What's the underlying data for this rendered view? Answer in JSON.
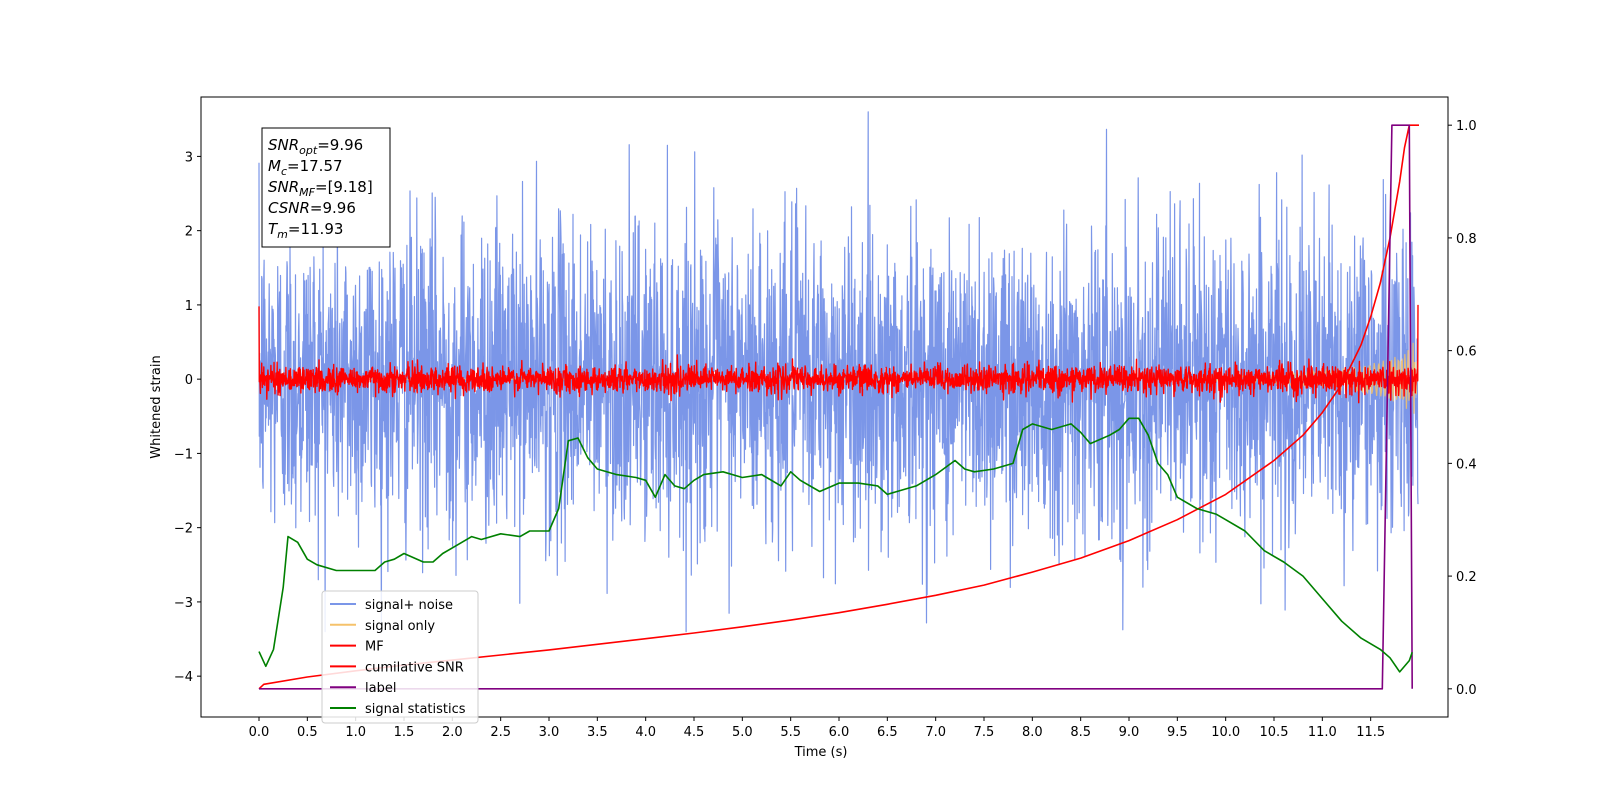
{
  "chart_data": {
    "type": "line",
    "title": "",
    "xlabel": "Time (s)",
    "ylabel": "Whitened strain",
    "y2label": "",
    "xlim": [
      -0.6,
      12.3
    ],
    "ylim": [
      -4.55,
      3.8
    ],
    "y2lim": [
      -0.05,
      1.05
    ],
    "x_ticks": [
      0.0,
      0.5,
      1.0,
      1.5,
      2.0,
      2.5,
      3.0,
      3.5,
      4.0,
      4.5,
      5.0,
      5.5,
      6.0,
      6.5,
      7.0,
      7.5,
      8.0,
      8.5,
      9.0,
      9.5,
      10.0,
      10.5,
      11.0,
      11.5
    ],
    "x_tick_labels": [
      "0.0",
      "0.5",
      "1.0",
      "1.5",
      "2.0",
      "2.5",
      "3.0",
      "3.5",
      "4.0",
      "4.5",
      "5.0",
      "5.5",
      "6.0",
      "6.5",
      "7.0",
      "7.5",
      "8.0",
      "8.5",
      "9.0",
      "9.5",
      "10.0",
      "10.5",
      "11.0",
      "11.5"
    ],
    "y_ticks": [
      -4,
      -3,
      -2,
      -1,
      0,
      1,
      2,
      3
    ],
    "y_tick_labels": [
      "−4",
      "−3",
      "−2",
      "−1",
      "0",
      "1",
      "2",
      "3"
    ],
    "y2_ticks": [
      0.0,
      0.2,
      0.4,
      0.6,
      0.8,
      1.0
    ],
    "y2_tick_labels": [
      "0.0",
      "0.2",
      "0.4",
      "0.6",
      "0.8",
      "1.0"
    ],
    "grid": false,
    "legend_position": "lower-left",
    "annotation": {
      "lines": [
        {
          "name": "SNR",
          "sub": "opt",
          "value": "=9.96"
        },
        {
          "name": "M",
          "sub": "c",
          "value": "=17.57"
        },
        {
          "name": "SNR",
          "sub": "MF",
          "value": "=[9.18]"
        },
        {
          "name": "CSNR",
          "sub": "",
          "value": "=9.96"
        },
        {
          "name": "T",
          "sub": "m",
          "value": "=11.93"
        }
      ]
    },
    "series": [
      {
        "name": "signal+ noise",
        "axis": "left",
        "color": "#7b96e8",
        "kind": "noise",
        "x_range": [
          0.0,
          11.99
        ],
        "sigma": 1.05,
        "peak_max": 3.6,
        "peak_min": -3.4
      },
      {
        "name": "signal only",
        "axis": "left",
        "color": "#f5c26b",
        "kind": "chirp",
        "x_range": [
          0.0,
          11.99
        ],
        "amplitude_start": 0.0,
        "amplitude_end": 1.0
      },
      {
        "name": "MF",
        "axis": "left",
        "color": "#ff0000",
        "kind": "noise",
        "x_range": [
          0.0,
          11.99
        ],
        "sigma": 0.09,
        "start_value": 0.98,
        "end_value": 1.0
      },
      {
        "name": "cumilative SNR",
        "axis": "right",
        "color": "#ff0000",
        "kind": "line",
        "x": [
          0.0,
          0.05,
          0.5,
          1.0,
          1.5,
          2.0,
          2.5,
          3.0,
          3.5,
          4.0,
          4.5,
          5.0,
          5.5,
          6.0,
          6.5,
          7.0,
          7.5,
          8.0,
          8.5,
          9.0,
          9.5,
          10.0,
          10.5,
          10.8,
          11.0,
          11.2,
          11.4,
          11.5,
          11.6,
          11.7,
          11.8,
          11.85,
          11.9,
          11.93,
          12.0
        ],
        "y": [
          0.0,
          0.008,
          0.021,
          0.032,
          0.042,
          0.051,
          0.06,
          0.069,
          0.079,
          0.089,
          0.099,
          0.11,
          0.122,
          0.135,
          0.15,
          0.166,
          0.184,
          0.207,
          0.232,
          0.263,
          0.3,
          0.345,
          0.405,
          0.45,
          0.49,
          0.54,
          0.61,
          0.66,
          0.72,
          0.8,
          0.9,
          0.96,
          1.0,
          1.0,
          1.0
        ]
      },
      {
        "name": "label",
        "axis": "right",
        "color": "#800080",
        "kind": "line",
        "x": [
          0.0,
          11.62,
          11.72,
          11.72,
          11.9,
          11.9,
          11.93
        ],
        "y": [
          0.0,
          0.0,
          1.0,
          1.0,
          1.0,
          1.0,
          0.0
        ]
      },
      {
        "name": "signal statistics",
        "axis": "right",
        "color": "#008000",
        "kind": "line",
        "x": [
          0.0,
          0.07,
          0.15,
          0.25,
          0.3,
          0.4,
          0.5,
          0.6,
          0.8,
          1.0,
          1.2,
          1.3,
          1.4,
          1.5,
          1.7,
          1.8,
          1.9,
          2.0,
          2.2,
          2.3,
          2.5,
          2.7,
          2.8,
          3.0,
          3.1,
          3.2,
          3.3,
          3.4,
          3.5,
          3.7,
          3.9,
          4.0,
          4.1,
          4.2,
          4.3,
          4.4,
          4.5,
          4.6,
          4.8,
          5.0,
          5.2,
          5.4,
          5.5,
          5.6,
          5.8,
          6.0,
          6.2,
          6.4,
          6.5,
          6.6,
          6.8,
          7.0,
          7.2,
          7.3,
          7.4,
          7.6,
          7.8,
          7.9,
          8.0,
          8.2,
          8.4,
          8.5,
          8.6,
          8.8,
          8.9,
          9.0,
          9.1,
          9.2,
          9.3,
          9.4,
          9.5,
          9.7,
          9.9,
          10.0,
          10.2,
          10.4,
          10.6,
          10.8,
          11.0,
          11.2,
          11.4,
          11.6,
          11.7,
          11.8,
          11.9,
          11.93
        ],
        "y": [
          0.066,
          0.04,
          0.07,
          0.18,
          0.27,
          0.26,
          0.23,
          0.22,
          0.21,
          0.21,
          0.21,
          0.225,
          0.23,
          0.24,
          0.225,
          0.225,
          0.24,
          0.25,
          0.27,
          0.265,
          0.275,
          0.27,
          0.28,
          0.28,
          0.32,
          0.44,
          0.445,
          0.41,
          0.39,
          0.38,
          0.375,
          0.37,
          0.34,
          0.38,
          0.36,
          0.355,
          0.37,
          0.38,
          0.385,
          0.375,
          0.38,
          0.36,
          0.385,
          0.37,
          0.35,
          0.365,
          0.365,
          0.36,
          0.345,
          0.35,
          0.36,
          0.38,
          0.405,
          0.39,
          0.385,
          0.39,
          0.4,
          0.46,
          0.47,
          0.46,
          0.47,
          0.455,
          0.435,
          0.45,
          0.46,
          0.48,
          0.48,
          0.45,
          0.4,
          0.38,
          0.34,
          0.32,
          0.31,
          0.3,
          0.28,
          0.245,
          0.225,
          0.2,
          0.16,
          0.12,
          0.09,
          0.07,
          0.055,
          0.03,
          0.05,
          0.065
        ]
      }
    ]
  }
}
